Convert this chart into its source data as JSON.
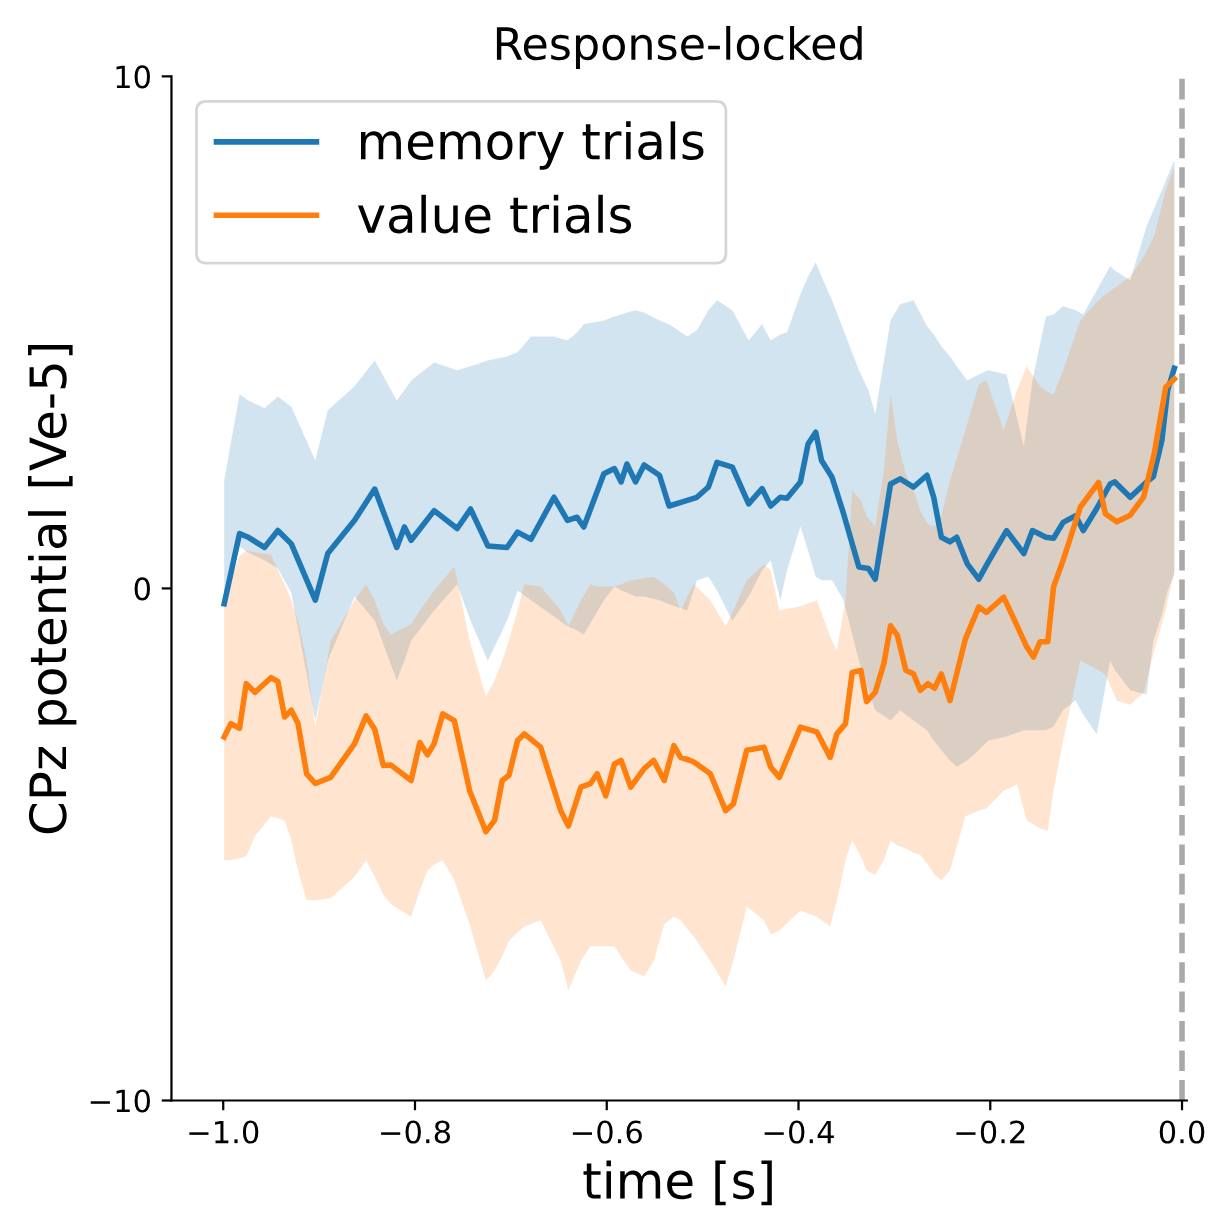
{
  "chart_data": {
    "type": "line",
    "title": "Response-locked",
    "xlabel": "time [s]",
    "ylabel": "CPz potential [Ve-5]",
    "xlim": [
      -1.054,
      0.005
    ],
    "xticks": [
      {
        "value": -1.0,
        "label": "−1.0"
      },
      {
        "value": -0.8,
        "label": "−0.8"
      },
      {
        "value": -0.6,
        "label": "−0.6"
      },
      {
        "value": -0.4,
        "label": "−0.4"
      },
      {
        "value": -0.2,
        "label": "−0.2"
      },
      {
        "value": 0.0,
        "label": "0.0"
      }
    ],
    "ylim": [
      -10,
      10
    ],
    "yticks": [
      {
        "value": -10,
        "label": "−10"
      },
      0,
      10
    ],
    "grid": false,
    "legend": "top left",
    "ref_lines": [
      {
        "axis": "x",
        "value": 0.0,
        "color": "#a9a9a9",
        "line_style": "dashed"
      }
    ],
    "series": [
      {
        "name": "memory trials",
        "color": "#1f77b4",
        "x": [
          -0.999,
          -0.983,
          -0.974,
          -0.957,
          -0.943,
          -0.929,
          -0.904,
          -0.891,
          -0.863,
          -0.842,
          -0.819,
          -0.811,
          -0.804,
          -0.78,
          -0.756,
          -0.742,
          -0.724,
          -0.704,
          -0.693,
          -0.679,
          -0.655,
          -0.641,
          -0.631,
          -0.624,
          -0.603,
          -0.592,
          -0.585,
          -0.579,
          -0.57,
          -0.561,
          -0.545,
          -0.535,
          -0.516,
          -0.506,
          -0.494,
          -0.485,
          -0.469,
          -0.452,
          -0.438,
          -0.429,
          -0.419,
          -0.412,
          -0.398,
          -0.39,
          -0.382,
          -0.376,
          -0.365,
          -0.353,
          -0.337,
          -0.327,
          -0.32,
          -0.304,
          -0.294,
          -0.28,
          -0.266,
          -0.259,
          -0.251,
          -0.242,
          -0.235,
          -0.224,
          -0.212,
          -0.202,
          -0.183,
          -0.165,
          -0.156,
          -0.142,
          -0.134,
          -0.124,
          -0.111,
          -0.103,
          -0.089,
          -0.075,
          -0.07,
          -0.054,
          -0.037,
          -0.03,
          -0.021,
          -0.015,
          -0.008
        ],
        "values": [
          -0.3,
          1.07,
          1.0,
          0.8,
          1.13,
          0.87,
          -0.23,
          0.68,
          1.33,
          1.94,
          0.8,
          1.2,
          0.94,
          1.52,
          1.17,
          1.55,
          0.83,
          0.8,
          1.1,
          0.96,
          1.78,
          1.33,
          1.39,
          1.2,
          2.24,
          2.34,
          2.08,
          2.43,
          2.08,
          2.41,
          2.21,
          1.61,
          1.72,
          1.78,
          1.98,
          2.46,
          2.37,
          1.65,
          1.95,
          1.61,
          1.78,
          1.76,
          2.08,
          2.82,
          3.05,
          2.5,
          2.17,
          1.46,
          0.42,
          0.39,
          0.18,
          2.04,
          2.14,
          1.98,
          2.21,
          1.78,
          1.0,
          0.91,
          1.0,
          0.48,
          0.18,
          0.52,
          1.13,
          0.68,
          1.13,
          1.0,
          0.98,
          1.29,
          1.42,
          1.13,
          1.56,
          2.04,
          2.08,
          1.78,
          2.08,
          2.18,
          2.89,
          3.87,
          4.3
        ],
        "upper": [
          2.11,
          3.79,
          3.67,
          3.52,
          3.75,
          3.55,
          2.5,
          3.48,
          3.95,
          4.45,
          3.67,
          3.87,
          4.06,
          4.41,
          4.26,
          4.34,
          4.45,
          4.53,
          4.61,
          4.92,
          4.92,
          4.84,
          5.0,
          5.16,
          5.23,
          5.31,
          5.35,
          5.39,
          5.43,
          5.39,
          5.23,
          5.16,
          4.92,
          5.04,
          5.43,
          5.63,
          5.43,
          4.84,
          5.16,
          4.84,
          4.96,
          5.0,
          5.74,
          6.09,
          6.37,
          6.09,
          5.63,
          5.04,
          4.26,
          3.87,
          3.4,
          5.23,
          5.55,
          5.63,
          5.12,
          4.96,
          4.73,
          4.53,
          4.34,
          4.06,
          4.18,
          4.26,
          4.18,
          2.77,
          4.06,
          5.31,
          5.35,
          5.51,
          5.43,
          5.35,
          5.82,
          6.29,
          6.21,
          6.02,
          7.07,
          7.38,
          7.77,
          8.05,
          8.36
        ],
        "lower": [
          -0.23,
          0.82,
          0.7,
          0.55,
          0.39,
          -0.08,
          -2.58,
          -1.41,
          -0.16,
          -0.63,
          -1.8,
          -1.41,
          -1.02,
          -0.43,
          0.08,
          -0.63,
          -1.41,
          -0.63,
          -0.04,
          -0.23,
          -0.55,
          -0.74,
          -0.82,
          -0.9,
          -0.23,
          0.04,
          -0.04,
          -0.08,
          -0.16,
          -0.16,
          -0.23,
          -0.31,
          -0.43,
          0.16,
          0.23,
          -0.04,
          -0.63,
          -0.16,
          0.35,
          0.55,
          -0.23,
          0.35,
          1.21,
          0.74,
          0.23,
          0.16,
          0.16,
          -0.23,
          -1.41,
          -1.99,
          -2.38,
          -2.58,
          -2.38,
          -2.58,
          -2.77,
          -2.97,
          -3.16,
          -3.36,
          -3.48,
          -3.36,
          -3.16,
          -2.97,
          -2.89,
          -2.77,
          -2.77,
          -2.77,
          -2.7,
          -2.38,
          -2.19,
          -2.46,
          -2.85,
          -1.41,
          -1.6,
          -1.99,
          -2.07,
          -1.02,
          -0.51,
          -0.04,
          0.27
        ]
      },
      {
        "name": "value trials",
        "color": "#ff7f0e",
        "x": [
          -0.999,
          -0.992,
          -0.983,
          -0.976,
          -0.967,
          -0.95,
          -0.943,
          -0.936,
          -0.929,
          -0.922,
          -0.913,
          -0.904,
          -0.888,
          -0.863,
          -0.851,
          -0.842,
          -0.833,
          -0.825,
          -0.804,
          -0.795,
          -0.787,
          -0.78,
          -0.771,
          -0.759,
          -0.743,
          -0.726,
          -0.717,
          -0.709,
          -0.702,
          -0.693,
          -0.686,
          -0.669,
          -0.648,
          -0.64,
          -0.627,
          -0.617,
          -0.61,
          -0.601,
          -0.592,
          -0.585,
          -0.575,
          -0.561,
          -0.551,
          -0.54,
          -0.53,
          -0.523,
          -0.513,
          -0.509,
          -0.492,
          -0.476,
          -0.468,
          -0.454,
          -0.436,
          -0.429,
          -0.42,
          -0.398,
          -0.381,
          -0.367,
          -0.36,
          -0.351,
          -0.344,
          -0.335,
          -0.329,
          -0.32,
          -0.311,
          -0.304,
          -0.297,
          -0.288,
          -0.28,
          -0.273,
          -0.265,
          -0.258,
          -0.251,
          -0.242,
          -0.226,
          -0.212,
          -0.204,
          -0.186,
          -0.172,
          -0.162,
          -0.155,
          -0.148,
          -0.14,
          -0.134,
          -0.124,
          -0.106,
          -0.087,
          -0.08,
          -0.068,
          -0.054,
          -0.04,
          -0.029,
          -0.017,
          -0.008
        ],
        "values": [
          -2.9,
          -2.64,
          -2.73,
          -1.86,
          -2.03,
          -1.74,
          -1.82,
          -2.51,
          -2.38,
          -2.64,
          -3.62,
          -3.81,
          -3.69,
          -3.03,
          -2.49,
          -2.75,
          -3.46,
          -3.45,
          -3.75,
          -3.01,
          -3.25,
          -3.03,
          -2.45,
          -2.58,
          -3.95,
          -4.75,
          -4.53,
          -3.75,
          -3.65,
          -2.97,
          -2.84,
          -3.1,
          -4.34,
          -4.64,
          -3.88,
          -3.81,
          -3.62,
          -4.05,
          -3.43,
          -3.36,
          -3.88,
          -3.52,
          -3.36,
          -3.75,
          -3.07,
          -3.3,
          -3.36,
          -3.39,
          -3.62,
          -4.34,
          -4.21,
          -3.16,
          -3.1,
          -3.49,
          -3.69,
          -2.71,
          -2.8,
          -3.3,
          -2.84,
          -2.64,
          -1.64,
          -1.6,
          -2.21,
          -2.03,
          -1.47,
          -0.73,
          -0.91,
          -1.6,
          -1.67,
          -1.99,
          -1.86,
          -1.95,
          -1.67,
          -2.19,
          -0.99,
          -0.36,
          -0.47,
          -0.17,
          -0.73,
          -1.14,
          -1.34,
          -1.04,
          -1.04,
          0.03,
          0.55,
          1.59,
          2.07,
          1.46,
          1.3,
          1.43,
          1.79,
          2.63,
          3.93,
          4.09
        ],
        "upper": [
          -0.35,
          0.16,
          0.63,
          0.74,
          0.7,
          0.66,
          0.35,
          0.08,
          -0.23,
          -0.63,
          -1.41,
          -2.7,
          -1.02,
          -0.23,
          0.08,
          -0.23,
          -0.7,
          -0.9,
          -0.7,
          -0.43,
          -0.23,
          -0.04,
          0.16,
          0.43,
          -1.02,
          -2.11,
          -1.8,
          -1.41,
          -1.02,
          -0.43,
          0.08,
          0.04,
          -0.43,
          -0.74,
          -0.23,
          0.08,
          0.04,
          0.04,
          0.04,
          0.08,
          0.16,
          0.2,
          0.23,
          0.08,
          -0.08,
          -0.43,
          -0.04,
          0.08,
          -0.23,
          -0.74,
          -0.43,
          0.16,
          0.47,
          0.35,
          -0.43,
          -0.35,
          -0.23,
          -0.94,
          -1.21,
          -0.23,
          1.91,
          1.72,
          1.41,
          1.21,
          2.3,
          3.79,
          2.89,
          2.23,
          1.91,
          1.52,
          1.25,
          1.21,
          1.41,
          2.11,
          3.09,
          3.98,
          4.06,
          3.09,
          3.87,
          4.34,
          4.14,
          3.95,
          3.83,
          3.79,
          4.26,
          5.23,
          5.63,
          5.74,
          5.9,
          6.09,
          6.48,
          6.88,
          7.77,
          8.24
        ],
        "lower": [
          -5.31,
          -5.31,
          -5.27,
          -5.23,
          -4.84,
          -4.45,
          -4.49,
          -4.53,
          -4.92,
          -5.51,
          -6.09,
          -6.09,
          -6.05,
          -5.63,
          -5.31,
          -5.63,
          -5.98,
          -6.17,
          -6.41,
          -5.9,
          -5.51,
          -5.39,
          -5.31,
          -5.7,
          -6.56,
          -7.66,
          -7.46,
          -7.19,
          -6.88,
          -6.72,
          -6.6,
          -6.48,
          -7.27,
          -7.85,
          -7.27,
          -6.99,
          -6.99,
          -6.99,
          -6.99,
          -7.19,
          -7.46,
          -7.58,
          -7.27,
          -6.56,
          -6.41,
          -6.48,
          -6.72,
          -6.8,
          -7.27,
          -7.77,
          -7.27,
          -6.21,
          -6.48,
          -6.76,
          -6.68,
          -6.29,
          -6.41,
          -6.6,
          -6.09,
          -5.31,
          -4.92,
          -5.23,
          -5.51,
          -5.59,
          -5.31,
          -4.92,
          -5.02,
          -5.08,
          -5.16,
          -5.2,
          -5.39,
          -5.59,
          -5.7,
          -5.51,
          -4.45,
          -4.34,
          -4.3,
          -3.95,
          -3.83,
          -4.53,
          -4.61,
          -4.69,
          -4.73,
          -3.95,
          -2.97,
          -1.41,
          -1.6,
          -1.68,
          -2.19,
          -2.27,
          -2.03,
          -1.21,
          -0.43,
          0.35
        ]
      }
    ]
  }
}
